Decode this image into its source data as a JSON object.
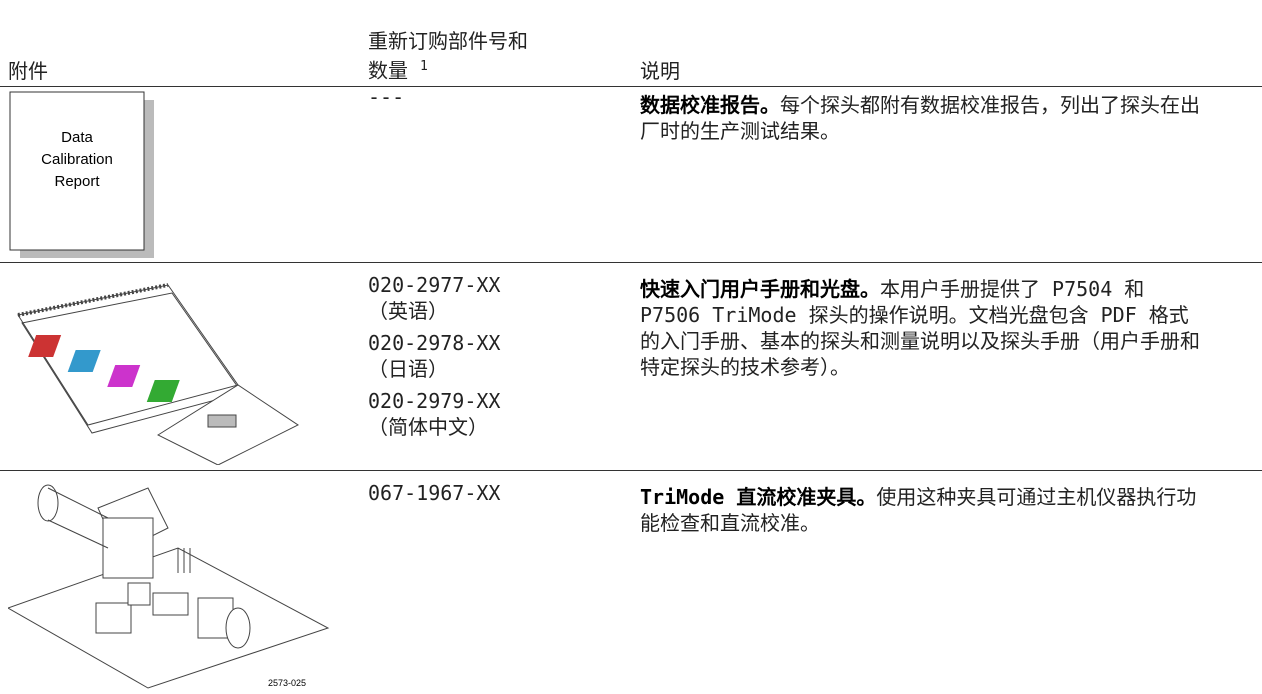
{
  "header": {
    "accessory": "附件",
    "part_number": [
      "重新订购部件号和",
      "数量"
    ],
    "footnote": "1",
    "description": "说明"
  },
  "rows": [
    {
      "image_text": [
        "Data",
        "Calibration",
        "Report"
      ],
      "part_numbers": [
        {
          "number": "---"
        }
      ],
      "title": "数据校准报告。",
      "text": "每个探头都附有数据校准报告，列出了探头在出厂时的生产测试结果。"
    },
    {
      "part_numbers": [
        {
          "number": "020-2977-XX",
          "language": "（英语）"
        },
        {
          "number": "020-2978-XX",
          "language": "（日语）"
        },
        {
          "number": "020-2979-XX",
          "language": "（简体中文）"
        }
      ],
      "title": "快速入门用户手册和光盘。",
      "text": "本用户手册提供了 P7504 和 P7506 TriMode 探头的操作说明。文档光盘包含 PDF 格式的入门手册、基本的探头和测量说明以及探头手册（用户手册和特定探头的技术参考）。"
    },
    {
      "image_label": "2573-025",
      "part_numbers": [
        {
          "number": "067-1967-XX"
        }
      ],
      "title": "TriMode 直流校准夹具。",
      "text": "使用这种夹具可通过主机仪器执行功能检查和直流校准。"
    }
  ]
}
